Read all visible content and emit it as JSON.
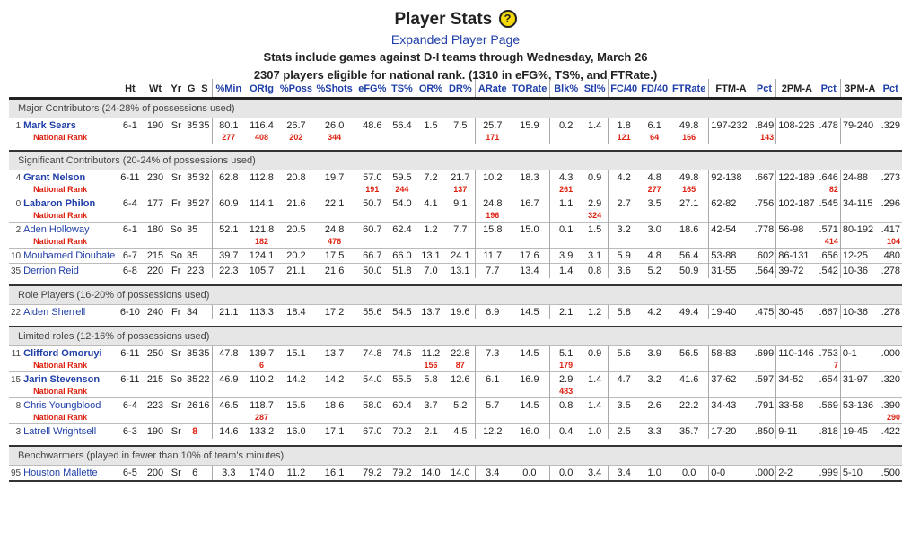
{
  "title": "Player Stats",
  "help_icon": "?",
  "subtitle": "Expanded Player Page",
  "line1_prefix": "Stats include games against D-I teams through ",
  "line1_date": "Wednesday, March 26",
  "line2": "2307 players eligible for national rank. (1310 in eFG%, TS%, and FTRate.)",
  "columns": [
    "Ht",
    "Wt",
    "Yr",
    "G",
    "S",
    "%Min",
    "ORtg",
    "%Poss",
    "%Shots",
    "eFG%",
    "TS%",
    "OR%",
    "DR%",
    "ARate",
    "TORate",
    "Blk%",
    "Stl%",
    "FC/40",
    "FD/40",
    "FTRate",
    "FTM-A",
    "Pct",
    "2PM-A",
    "Pct",
    "3PM-A",
    "Pct"
  ],
  "rank_label": "National Rank",
  "sections": [
    {
      "label": "Major Contributors (24-28% of possessions used)",
      "players": [
        {
          "num": "1",
          "name": "Mark Sears",
          "bold": true,
          "ht": "6-1",
          "wt": "190",
          "yr": "Sr",
          "g": "35",
          "s": "35",
          "min": "80.1",
          "ortg": "116.4",
          "poss": "26.7",
          "shots": "26.0",
          "efg": "48.6",
          "ts": "56.4",
          "or": "1.5",
          "dr": "7.5",
          "arate": "25.7",
          "torate": "15.9",
          "blk": "0.2",
          "stl": "1.4",
          "fc": "1.8",
          "fd": "6.1",
          "ftrate": "49.8",
          "ftma": "197-232",
          "ftp": ".849",
          "p2ma": "108-226",
          "p2p": ".478",
          "p3ma": "79-240",
          "p3p": ".329",
          "ranks": {
            "min": "277",
            "ortg": "408",
            "poss": "202",
            "shots": "344",
            "arate": "171",
            "fc": "121",
            "fd": "64",
            "ftrate": "166",
            "ftp": "143"
          }
        }
      ]
    },
    {
      "label": "Significant Contributors (20-24% of possessions used)",
      "players": [
        {
          "num": "4",
          "name": "Grant Nelson",
          "bold": true,
          "ht": "6-11",
          "wt": "230",
          "yr": "Sr",
          "g": "35",
          "s": "32",
          "min": "62.8",
          "ortg": "112.8",
          "poss": "20.8",
          "shots": "19.7",
          "efg": "57.0",
          "ts": "59.5",
          "or": "7.2",
          "dr": "21.7",
          "arate": "10.2",
          "torate": "18.3",
          "blk": "4.3",
          "stl": "0.9",
          "fc": "4.2",
          "fd": "4.8",
          "ftrate": "49.8",
          "ftma": "92-138",
          "ftp": ".667",
          "p2ma": "122-189",
          "p2p": ".646",
          "p3ma": "24-88",
          "p3p": ".273",
          "ranks": {
            "efg": "191",
            "ts": "244",
            "dr": "137",
            "blk": "261",
            "fd": "277",
            "ftrate": "165",
            "p2p": "82"
          }
        },
        {
          "num": "0",
          "name": "Labaron Philon",
          "bold": true,
          "ht": "6-4",
          "wt": "177",
          "yr": "Fr",
          "g": "35",
          "s": "27",
          "min": "60.9",
          "ortg": "114.1",
          "poss": "21.6",
          "shots": "22.1",
          "efg": "50.7",
          "ts": "54.0",
          "or": "4.1",
          "dr": "9.1",
          "arate": "24.8",
          "torate": "16.7",
          "blk": "1.1",
          "stl": "2.9",
          "fc": "2.7",
          "fd": "3.5",
          "ftrate": "27.1",
          "ftma": "62-82",
          "ftp": ".756",
          "p2ma": "102-187",
          "p2p": ".545",
          "p3ma": "34-115",
          "p3p": ".296",
          "ranks": {
            "arate": "196",
            "stl": "324"
          }
        },
        {
          "num": "2",
          "name": "Aden Holloway",
          "bold": false,
          "ht": "6-1",
          "wt": "180",
          "yr": "So",
          "g": "35",
          "s": "",
          "min": "52.1",
          "ortg": "121.8",
          "poss": "20.5",
          "shots": "24.8",
          "efg": "60.7",
          "ts": "62.4",
          "or": "1.2",
          "dr": "7.7",
          "arate": "15.8",
          "torate": "15.0",
          "blk": "0.1",
          "stl": "1.5",
          "fc": "3.2",
          "fd": "3.0",
          "ftrate": "18.6",
          "ftma": "42-54",
          "ftp": ".778",
          "p2ma": "56-98",
          "p2p": ".571",
          "p3ma": "80-192",
          "p3p": ".417",
          "ranks": {
            "ortg": "182",
            "shots": "476",
            "p2p": "414",
            "p3p": "104"
          }
        },
        {
          "num": "10",
          "name": "Mouhamed Dioubate",
          "bold": false,
          "ht": "6-7",
          "wt": "215",
          "yr": "So",
          "g": "35",
          "s": "",
          "min": "39.7",
          "ortg": "124.1",
          "poss": "20.2",
          "shots": "17.5",
          "efg": "66.7",
          "ts": "66.0",
          "or": "13.1",
          "dr": "24.1",
          "arate": "11.7",
          "torate": "17.6",
          "blk": "3.9",
          "stl": "3.1",
          "fc": "5.9",
          "fd": "4.8",
          "ftrate": "56.4",
          "ftma": "53-88",
          "ftp": ".602",
          "p2ma": "86-131",
          "p2p": ".656",
          "p3ma": "12-25",
          "p3p": ".480",
          "ranks": null
        },
        {
          "num": "35",
          "name": "Derrion Reid",
          "bold": false,
          "ht": "6-8",
          "wt": "220",
          "yr": "Fr",
          "g": "22",
          "s": "3",
          "min": "22.3",
          "ortg": "105.7",
          "poss": "21.1",
          "shots": "21.6",
          "efg": "50.0",
          "ts": "51.8",
          "or": "7.0",
          "dr": "13.1",
          "arate": "7.7",
          "torate": "13.4",
          "blk": "1.4",
          "stl": "0.8",
          "fc": "3.6",
          "fd": "5.2",
          "ftrate": "50.9",
          "ftma": "31-55",
          "ftp": ".564",
          "p2ma": "39-72",
          "p2p": ".542",
          "p3ma": "10-36",
          "p3p": ".278",
          "ranks": null
        }
      ]
    },
    {
      "label": "Role Players (16-20% of possessions used)",
      "players": [
        {
          "num": "22",
          "name": "Aiden Sherrell",
          "bold": false,
          "ht": "6-10",
          "wt": "240",
          "yr": "Fr",
          "g": "34",
          "s": "",
          "min": "21.1",
          "ortg": "113.3",
          "poss": "18.4",
          "shots": "17.2",
          "efg": "55.6",
          "ts": "54.5",
          "or": "13.7",
          "dr": "19.6",
          "arate": "6.9",
          "torate": "14.5",
          "blk": "2.1",
          "stl": "1.2",
          "fc": "5.8",
          "fd": "4.2",
          "ftrate": "49.4",
          "ftma": "19-40",
          "ftp": ".475",
          "p2ma": "30-45",
          "p2p": ".667",
          "p3ma": "10-36",
          "p3p": ".278",
          "ranks": null
        }
      ]
    },
    {
      "label": "Limited roles (12-16% of possessions used)",
      "players": [
        {
          "num": "11",
          "name": "Clifford Omoruyi",
          "bold": true,
          "ht": "6-11",
          "wt": "250",
          "yr": "Sr",
          "g": "35",
          "s": "35",
          "min": "47.8",
          "ortg": "139.7",
          "poss": "15.1",
          "shots": "13.7",
          "efg": "74.8",
          "ts": "74.6",
          "or": "11.2",
          "dr": "22.8",
          "arate": "7.3",
          "torate": "14.5",
          "blk": "5.1",
          "stl": "0.9",
          "fc": "5.6",
          "fd": "3.9",
          "ftrate": "56.5",
          "ftma": "58-83",
          "ftp": ".699",
          "p2ma": "110-146",
          "p2p": ".753",
          "p3ma": "0-1",
          "p3p": ".000",
          "ranks": {
            "ortg": "6",
            "or": "156",
            "dr": "87",
            "blk": "179",
            "p2p": "7"
          }
        },
        {
          "num": "15",
          "name": "Jarin Stevenson",
          "bold": true,
          "ht": "6-11",
          "wt": "215",
          "yr": "So",
          "g": "35",
          "s": "22",
          "min": "46.9",
          "ortg": "110.2",
          "poss": "14.2",
          "shots": "14.2",
          "efg": "54.0",
          "ts": "55.5",
          "or": "5.8",
          "dr": "12.6",
          "arate": "6.1",
          "torate": "16.9",
          "blk": "2.9",
          "stl": "1.4",
          "fc": "4.7",
          "fd": "3.2",
          "ftrate": "41.6",
          "ftma": "37-62",
          "ftp": ".597",
          "p2ma": "34-52",
          "p2p": ".654",
          "p3ma": "31-97",
          "p3p": ".320",
          "ranks": {
            "blk": "483"
          }
        },
        {
          "num": "8",
          "name": "Chris Youngblood",
          "bold": false,
          "ht": "6-4",
          "wt": "223",
          "yr": "Sr",
          "g": "26",
          "s": "16",
          "min": "46.5",
          "ortg": "118.7",
          "poss": "15.5",
          "shots": "18.6",
          "efg": "58.0",
          "ts": "60.4",
          "or": "3.7",
          "dr": "5.2",
          "arate": "5.7",
          "torate": "14.5",
          "blk": "0.8",
          "stl": "1.4",
          "fc": "3.5",
          "fd": "2.6",
          "ftrate": "22.2",
          "ftma": "34-43",
          "ftp": ".791",
          "p2ma": "33-58",
          "p2p": ".569",
          "p3ma": "53-136",
          "p3p": ".390",
          "ranks": {
            "ortg": "287",
            "p3p": "290"
          }
        },
        {
          "num": "3",
          "name": "Latrell Wrightsell",
          "bold": false,
          "ht": "6-3",
          "wt": "190",
          "yr": "Sr",
          "g": "8",
          "gred": true,
          "s": "",
          "min": "14.6",
          "ortg": "133.2",
          "poss": "16.0",
          "shots": "17.1",
          "efg": "67.0",
          "ts": "70.2",
          "or": "2.1",
          "dr": "4.5",
          "arate": "12.2",
          "torate": "16.0",
          "blk": "0.4",
          "stl": "1.0",
          "fc": "2.5",
          "fd": "3.3",
          "ftrate": "35.7",
          "ftma": "17-20",
          "ftp": ".850",
          "p2ma": "9-11",
          "p2p": ".818",
          "p3ma": "19-45",
          "p3p": ".422",
          "ranks": null
        }
      ]
    },
    {
      "label": "Benchwarmers (played in fewer than 10% of team's minutes)",
      "players": [
        {
          "num": "95",
          "name": "Houston Mallette",
          "bold": false,
          "ht": "6-5",
          "wt": "200",
          "yr": "Sr",
          "g": "6",
          "s": "",
          "min": "3.3",
          "ortg": "174.0",
          "poss": "11.2",
          "shots": "16.1",
          "efg": "79.2",
          "ts": "79.2",
          "or": "14.0",
          "dr": "14.0",
          "arate": "3.4",
          "torate": "0.0",
          "blk": "0.0",
          "stl": "3.4",
          "fc": "3.4",
          "fd": "1.0",
          "ftrate": "0.0",
          "ftma": "0-0",
          "ftp": ".000",
          "p2ma": "2-2",
          "p2p": ".999",
          "p3ma": "5-10",
          "p3p": ".500",
          "ranks": null
        }
      ]
    }
  ]
}
